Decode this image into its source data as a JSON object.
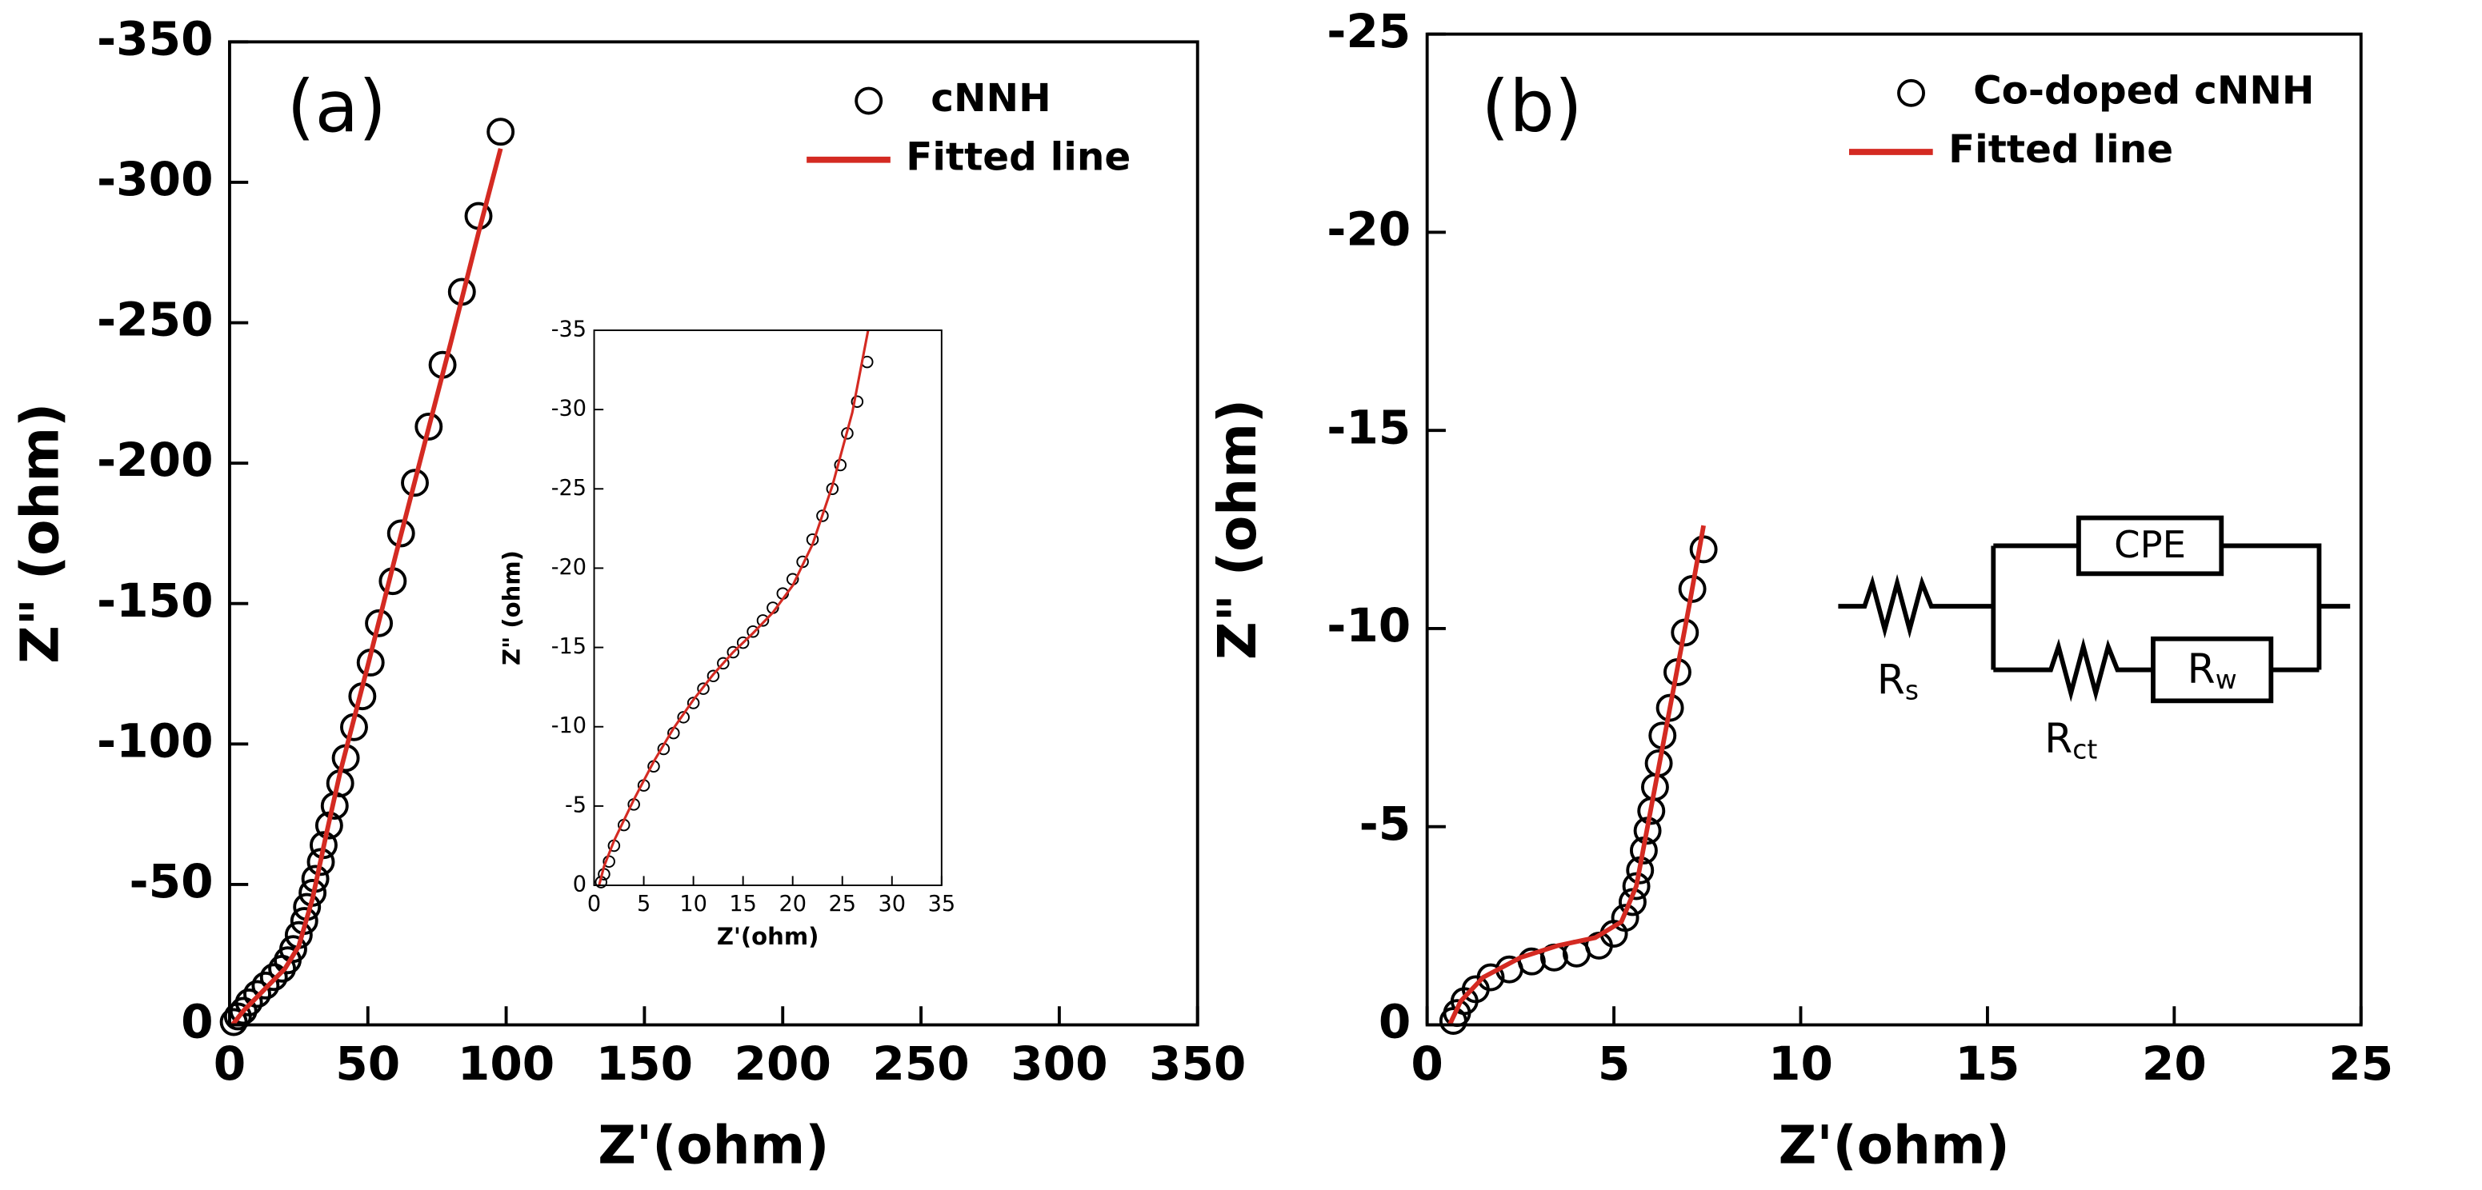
{
  "chart_data": [
    {
      "type": "scatter",
      "annotation": "(a)",
      "xlabel": "Z'(ohm)",
      "ylabel": "Z\" (ohm)",
      "legend": "upper right",
      "xlim": [
        0,
        350
      ],
      "ylim": [
        0,
        -350
      ],
      "xticks": [
        0,
        50,
        100,
        150,
        200,
        250,
        300,
        350
      ],
      "yticks": [
        0,
        -50,
        -100,
        -150,
        -200,
        -250,
        -300,
        -350
      ],
      "series": [
        {
          "name": "cNNH",
          "mode": "markers",
          "color": "#000000",
          "x": [
            98,
            90,
            84,
            77,
            72,
            67,
            62,
            59,
            54,
            51,
            48,
            45,
            42,
            40,
            38,
            36,
            34,
            33,
            31,
            30,
            28,
            27,
            25,
            23,
            21,
            19,
            16,
            13,
            10,
            7,
            5,
            3,
            1.5
          ],
          "values": [
            -318,
            -288,
            -261,
            -235,
            -213,
            -193,
            -175,
            -158,
            -143,
            -129,
            -117,
            -106,
            -95,
            -86,
            -78,
            -71,
            -64,
            -58,
            -52,
            -47,
            -42,
            -37,
            -32,
            -27,
            -23,
            -20,
            -17,
            -14,
            -11,
            -8,
            -5,
            -3,
            -1
          ]
        },
        {
          "name": "Fitted line",
          "mode": "line",
          "color": "#d42a22",
          "x": [
            1,
            5,
            10,
            15,
            20,
            25,
            30,
            35,
            40,
            50,
            60,
            70,
            80,
            90,
            98
          ],
          "values": [
            0,
            -5,
            -10,
            -15,
            -20,
            -28,
            -45,
            -68,
            -90,
            -128,
            -167,
            -205,
            -243,
            -282,
            -312
          ]
        }
      ]
    },
    {
      "type": "scatter",
      "xlabel": "Z'(ohm)",
      "ylabel": "Z\" (ohm)",
      "xlim": [
        0,
        35
      ],
      "ylim": [
        0,
        -35
      ],
      "xticks": [
        0,
        5,
        10,
        15,
        20,
        25,
        30,
        35
      ],
      "yticks": [
        0,
        -5,
        -10,
        -15,
        -20,
        -25,
        -30,
        -35
      ],
      "series": [
        {
          "name": "cNNH",
          "mode": "markers",
          "color": "#000000",
          "x": [
            27.5,
            26.5,
            25.5,
            24.8,
            24,
            23,
            22,
            21,
            20,
            19,
            18,
            17,
            16,
            15,
            14,
            13,
            12,
            11,
            10,
            9,
            8,
            7,
            6,
            5,
            4,
            3,
            2,
            1.5,
            1,
            0.7
          ],
          "values": [
            -33,
            -30.5,
            -28.5,
            -26.5,
            -25,
            -23.3,
            -21.8,
            -20.4,
            -19.3,
            -18.4,
            -17.5,
            -16.7,
            -16,
            -15.3,
            -14.7,
            -14,
            -13.2,
            -12.4,
            -11.5,
            -10.6,
            -9.6,
            -8.6,
            -7.5,
            -6.3,
            -5.1,
            -3.8,
            -2.5,
            -1.5,
            -0.7,
            -0.2
          ]
        },
        {
          "name": "Fitted line",
          "mode": "line",
          "color": "#d42a22",
          "x": [
            0.5,
            1,
            2,
            4,
            6,
            8,
            10,
            12,
            14,
            16,
            18,
            20,
            22,
            24,
            26,
            27.6
          ],
          "values": [
            0,
            -1.2,
            -2.8,
            -5.4,
            -7.8,
            -9.9,
            -11.7,
            -13.3,
            -14.7,
            -15.9,
            -17.2,
            -18.9,
            -21.5,
            -25.2,
            -29.8,
            -35
          ]
        }
      ]
    },
    {
      "type": "scatter",
      "annotation": "(b)",
      "xlabel": "Z'(ohm)",
      "ylabel": "Z\" (ohm)",
      "legend": "upper right",
      "xlim": [
        0,
        25
      ],
      "ylim": [
        0,
        -25
      ],
      "xticks": [
        0,
        5,
        10,
        15,
        20,
        25
      ],
      "yticks": [
        0,
        -5,
        -10,
        -15,
        -20,
        -25
      ],
      "circuit": {
        "cpe": "CPE",
        "rs": [
          "R",
          "s"
        ],
        "rct": [
          "R",
          "ct"
        ],
        "rw": [
          "R",
          "w"
        ]
      },
      "series": [
        {
          "name": "Co-doped cNNH",
          "mode": "markers",
          "color": "#000000",
          "x": [
            7.4,
            7.1,
            6.9,
            6.7,
            6.5,
            6.3,
            6.2,
            6.1,
            6,
            5.9,
            5.8,
            5.7,
            5.6,
            5.5,
            5.3,
            5,
            4.6,
            4,
            3.4,
            2.8,
            2.2,
            1.7,
            1.3,
            1,
            0.8,
            0.7
          ],
          "values": [
            -12,
            -11,
            -9.9,
            -8.9,
            -8,
            -7.3,
            -6.6,
            -6,
            -5.4,
            -4.9,
            -4.4,
            -3.9,
            -3.5,
            -3.1,
            -2.7,
            -2.3,
            -2,
            -1.8,
            -1.7,
            -1.6,
            -1.4,
            -1.2,
            -0.9,
            -0.6,
            -0.3,
            -0.1
          ]
        },
        {
          "name": "Fitted line",
          "mode": "line",
          "color": "#d42a22",
          "x": [
            0.6,
            0.9,
            1.5,
            2.5,
            3.5,
            4.5,
            5.2,
            5.6,
            6,
            6.5,
            7,
            7.4
          ],
          "values": [
            0,
            -0.6,
            -1.2,
            -1.7,
            -2,
            -2.2,
            -2.6,
            -3.5,
            -5.5,
            -8,
            -10.5,
            -12.6
          ]
        }
      ]
    }
  ]
}
